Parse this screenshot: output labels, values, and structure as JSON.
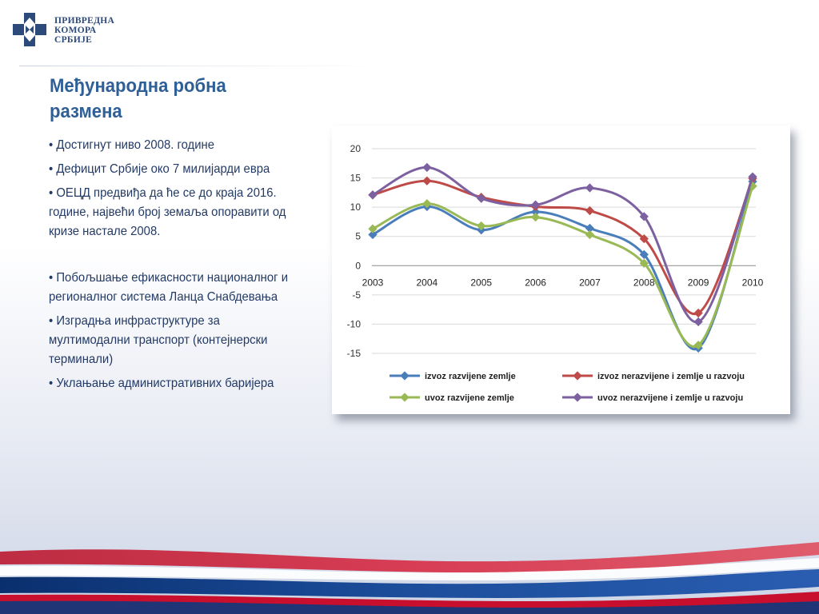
{
  "logo": {
    "line1": "ПРИВРЕДНА",
    "line2": "КОМОРА",
    "line3": "СРБИЈЕ",
    "colors": {
      "primary": "#2c4a7a"
    }
  },
  "slide": {
    "title_line1": "Међународна робна",
    "title_line2": "размена",
    "bullets": [
      "• Достигнут ниво 2008. године",
      "• Дефицит Србије око 7 милијарди евра",
      "• ОЕЦД предвиђа да ће се до краја 2016. године, највећи број земаља опоравити од кризе настале 2008.",
      "• Побољшање ефикасности националног и регионалног система Ланца Снабдевања",
      "• Изградња инфраструктуре за мултимодални транспорт (контејнерски терминали)",
      "• Уклањање административних баријера"
    ]
  },
  "chart_data": {
    "type": "line",
    "categories": [
      "2003",
      "2004",
      "2005",
      "2006",
      "2007",
      "2008",
      "2009",
      "2010"
    ],
    "ylim": [
      -15,
      20
    ],
    "yticks": [
      20,
      15,
      10,
      5,
      0,
      -5,
      -10,
      -15
    ],
    "grid": true,
    "legend_position": "bottom",
    "series": [
      {
        "name": "izvoz razvijene zemlje",
        "color": "#4a7ebb",
        "values": [
          5.3,
          10.1,
          6.1,
          9.2,
          6.4,
          1.9,
          -14.1,
          14.4
        ]
      },
      {
        "name": "izvoz nerazvijene i zemlje u razvoju",
        "color": "#be4b48",
        "values": [
          12.1,
          14.5,
          11.7,
          10.1,
          9.4,
          4.6,
          -8.1,
          14.9
        ]
      },
      {
        "name": "uvoz razvijene zemlje",
        "color": "#98b954",
        "values": [
          6.3,
          10.6,
          6.8,
          8.3,
          5.3,
          0.4,
          -13.6,
          13.6
        ]
      },
      {
        "name": "uvoz nerazvijene i zemlje u razvoju",
        "color": "#7d60a0",
        "values": [
          12.1,
          16.8,
          11.5,
          10.4,
          13.3,
          8.4,
          -9.6,
          15.2
        ]
      }
    ]
  },
  "colors": {
    "title": "#2f5f97",
    "text": "#233a66",
    "flag_red": "#c8102e",
    "flag_blue": "#0c3a7e"
  }
}
